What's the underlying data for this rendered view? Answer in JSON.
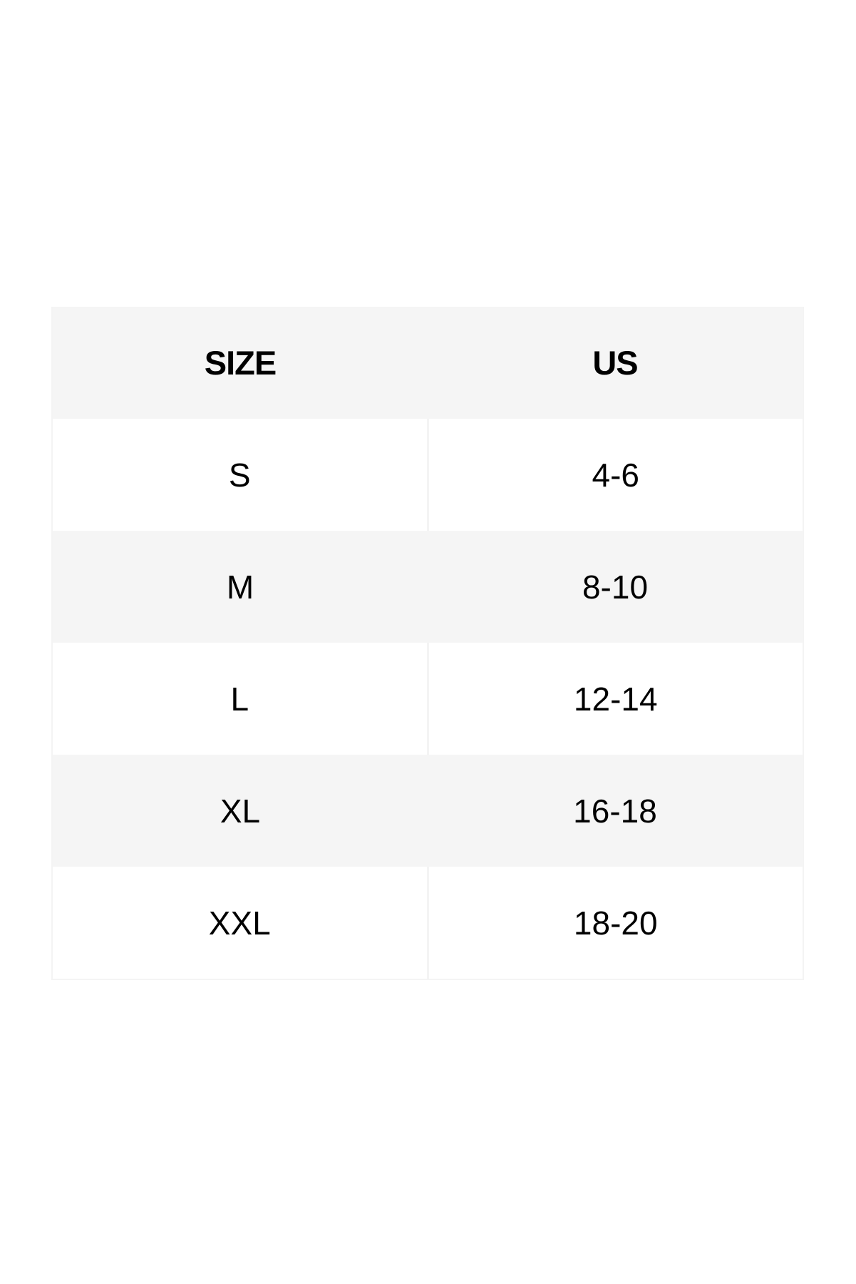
{
  "table": {
    "headers": [
      "SIZE",
      "US"
    ],
    "rows": [
      [
        "S",
        "4-6"
      ],
      [
        "M",
        "8-10"
      ],
      [
        "L",
        "12-14"
      ],
      [
        "XL",
        "16-18"
      ],
      [
        "XXL",
        "18-20"
      ]
    ]
  },
  "colors": {
    "header_bg": "#f5f5f5",
    "stripe_bg": "#f5f5f5",
    "row_bg": "#ffffff",
    "text": "#000000"
  }
}
